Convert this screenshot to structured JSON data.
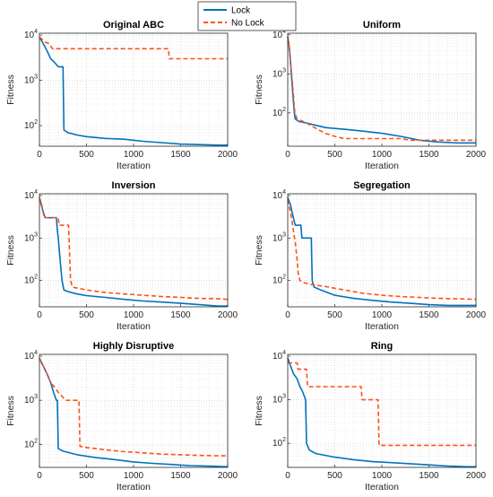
{
  "legend": {
    "placement": "top-center",
    "entries": [
      {
        "label": "Lock",
        "color": "#0072BD",
        "style": "solid"
      },
      {
        "label": "No Lock",
        "color": "#FF4F1A",
        "style": "dashed"
      }
    ]
  },
  "chart_data": [
    {
      "type": "line",
      "title": "Original ABC",
      "xlabel": "Iteration",
      "ylabel": "Fitness",
      "xlim": [
        0,
        2000
      ],
      "ylim": [
        35,
        11000
      ],
      "yscale": "log",
      "grid": true,
      "xticks": [
        0,
        500,
        1000,
        1500,
        2000
      ],
      "yticks": [
        {
          "value": 100,
          "label": "10^2"
        },
        {
          "value": 1000,
          "label": "10^3"
        },
        {
          "value": 10000,
          "label": "10^4"
        }
      ],
      "series": [
        {
          "name": "Lock",
          "points": [
            [
              0,
              9000
            ],
            [
              40,
              6500
            ],
            [
              80,
              4500
            ],
            [
              120,
              3000
            ],
            [
              160,
              2500
            ],
            [
              200,
              2000
            ],
            [
              250,
              2000
            ],
            [
              260,
              80
            ],
            [
              300,
              70
            ],
            [
              400,
              62
            ],
            [
              500,
              57
            ],
            [
              700,
              52
            ],
            [
              900,
              50
            ],
            [
              1100,
              45
            ],
            [
              1300,
              42
            ],
            [
              1500,
              39
            ],
            [
              1700,
              38
            ],
            [
              1900,
              37
            ],
            [
              2000,
              37
            ]
          ]
        },
        {
          "name": "No Lock",
          "points": [
            [
              0,
              9000
            ],
            [
              30,
              8000
            ],
            [
              60,
              7000
            ],
            [
              100,
              6500
            ],
            [
              140,
              5000
            ],
            [
              1370,
              5000
            ],
            [
              1380,
              3000
            ],
            [
              2000,
              3000
            ]
          ]
        }
      ]
    },
    {
      "type": "line",
      "title": "Uniform",
      "xlabel": "Iteration",
      "ylabel": "Fitness",
      "xlim": [
        0,
        2000
      ],
      "ylim": [
        14,
        11000
      ],
      "yscale": "log",
      "grid": true,
      "xticks": [
        0,
        500,
        1000,
        1500,
        2000
      ],
      "yticks": [
        {
          "value": 100,
          "label": "10^2"
        },
        {
          "value": 1000,
          "label": "10^3"
        },
        {
          "value": 10000,
          "label": "10^4"
        }
      ],
      "series": [
        {
          "name": "Lock",
          "points": [
            [
              0,
              9000
            ],
            [
              10,
              6000
            ],
            [
              20,
              4000
            ],
            [
              30,
              2000
            ],
            [
              40,
              900
            ],
            [
              50,
              400
            ],
            [
              60,
              200
            ],
            [
              70,
              100
            ],
            [
              80,
              70
            ],
            [
              120,
              60
            ],
            [
              200,
              55
            ],
            [
              300,
              48
            ],
            [
              400,
              42
            ],
            [
              600,
              38
            ],
            [
              800,
              34
            ],
            [
              1000,
              30
            ],
            [
              1200,
              25
            ],
            [
              1400,
              20
            ],
            [
              1600,
              18
            ],
            [
              1800,
              17
            ],
            [
              2000,
              17
            ]
          ]
        },
        {
          "name": "No Lock",
          "points": [
            [
              0,
              9000
            ],
            [
              15,
              5000
            ],
            [
              30,
              2000
            ],
            [
              45,
              800
            ],
            [
              60,
              300
            ],
            [
              75,
              100
            ],
            [
              100,
              70
            ],
            [
              200,
              55
            ],
            [
              300,
              40
            ],
            [
              400,
              30
            ],
            [
              500,
              25
            ],
            [
              600,
              22
            ],
            [
              1200,
              22
            ],
            [
              1300,
              20
            ],
            [
              2000,
              20
            ]
          ]
        }
      ]
    },
    {
      "type": "line",
      "title": "Inversion",
      "xlabel": "Iteration",
      "ylabel": "Fitness",
      "xlim": [
        0,
        2000
      ],
      "ylim": [
        24,
        11000
      ],
      "yscale": "log",
      "grid": true,
      "xticks": [
        0,
        500,
        1000,
        1500,
        2000
      ],
      "yticks": [
        {
          "value": 100,
          "label": "10^2"
        },
        {
          "value": 1000,
          "label": "10^3"
        },
        {
          "value": 10000,
          "label": "10^4"
        }
      ],
      "series": [
        {
          "name": "Lock",
          "points": [
            [
              0,
              9000
            ],
            [
              30,
              5000
            ],
            [
              60,
              3000
            ],
            [
              180,
              3000
            ],
            [
              190,
              1500
            ],
            [
              200,
              1000
            ],
            [
              220,
              300
            ],
            [
              240,
              100
            ],
            [
              260,
              60
            ],
            [
              300,
              55
            ],
            [
              400,
              48
            ],
            [
              500,
              44
            ],
            [
              700,
              40
            ],
            [
              900,
              36
            ],
            [
              1100,
              33
            ],
            [
              1300,
              31
            ],
            [
              1500,
              29
            ],
            [
              1700,
              27
            ],
            [
              1900,
              25
            ],
            [
              2000,
              25
            ]
          ]
        },
        {
          "name": "No Lock",
          "points": [
            [
              0,
              9000
            ],
            [
              25,
              6000
            ],
            [
              50,
              3000
            ],
            [
              200,
              3000
            ],
            [
              210,
              2000
            ],
            [
              310,
              2000
            ],
            [
              330,
              100
            ],
            [
              350,
              70
            ],
            [
              500,
              60
            ],
            [
              700,
              52
            ],
            [
              900,
              48
            ],
            [
              1100,
              45
            ],
            [
              1300,
              42
            ],
            [
              1500,
              40
            ],
            [
              1700,
              38
            ],
            [
              1900,
              37
            ],
            [
              2000,
              36
            ]
          ]
        }
      ]
    },
    {
      "type": "line",
      "title": "Segregation",
      "xlabel": "Iteration",
      "ylabel": "Fitness",
      "xlim": [
        0,
        2000
      ],
      "ylim": [
        24,
        11000
      ],
      "yscale": "log",
      "grid": true,
      "xticks": [
        0,
        500,
        1000,
        1500,
        2000
      ],
      "yticks": [
        {
          "value": 100,
          "label": "10^2"
        },
        {
          "value": 1000,
          "label": "10^3"
        },
        {
          "value": 10000,
          "label": "10^4"
        }
      ],
      "series": [
        {
          "name": "Lock",
          "points": [
            [
              0,
              9000
            ],
            [
              30,
              6000
            ],
            [
              60,
              3000
            ],
            [
              80,
              2000
            ],
            [
              140,
              2000
            ],
            [
              150,
              1000
            ],
            [
              250,
              1000
            ],
            [
              260,
              100
            ],
            [
              280,
              70
            ],
            [
              350,
              60
            ],
            [
              500,
              45
            ],
            [
              700,
              38
            ],
            [
              900,
              34
            ],
            [
              1100,
              31
            ],
            [
              1300,
              29
            ],
            [
              1500,
              27
            ],
            [
              1700,
              26
            ],
            [
              1900,
              26
            ],
            [
              2000,
              26
            ]
          ]
        },
        {
          "name": "No Lock",
          "points": [
            [
              0,
              8000
            ],
            [
              20,
              5000
            ],
            [
              40,
              3000
            ],
            [
              60,
              1500
            ],
            [
              80,
              800
            ],
            [
              100,
              300
            ],
            [
              110,
              150
            ],
            [
              130,
              100
            ],
            [
              160,
              90
            ],
            [
              250,
              80
            ],
            [
              400,
              72
            ],
            [
              600,
              60
            ],
            [
              800,
              50
            ],
            [
              1000,
              45
            ],
            [
              1200,
              42
            ],
            [
              1400,
              40
            ],
            [
              1600,
              38
            ],
            [
              1800,
              37
            ],
            [
              2000,
              36
            ]
          ]
        }
      ]
    },
    {
      "type": "line",
      "title": "Highly Disruptive",
      "xlabel": "Iteration",
      "ylabel": "Fitness",
      "xlim": [
        0,
        2000
      ],
      "ylim": [
        30,
        11000
      ],
      "yscale": "log",
      "grid": true,
      "xticks": [
        0,
        500,
        1000,
        1500,
        2000
      ],
      "yticks": [
        {
          "value": 100,
          "label": "10^2"
        },
        {
          "value": 1000,
          "label": "10^3"
        },
        {
          "value": 10000,
          "label": "10^4"
        }
      ],
      "series": [
        {
          "name": "Lock",
          "points": [
            [
              0,
              9000
            ],
            [
              40,
              6000
            ],
            [
              80,
              4000
            ],
            [
              120,
              2500
            ],
            [
              150,
              1500
            ],
            [
              180,
              1000
            ],
            [
              190,
              1000
            ],
            [
              200,
              80
            ],
            [
              250,
              70
            ],
            [
              400,
              58
            ],
            [
              600,
              50
            ],
            [
              800,
              45
            ],
            [
              1000,
              40
            ],
            [
              1200,
              37
            ],
            [
              1400,
              35
            ],
            [
              1600,
              33
            ],
            [
              1800,
              32
            ],
            [
              2000,
              31
            ]
          ]
        },
        {
          "name": "No Lock",
          "points": [
            [
              0,
              9000
            ],
            [
              40,
              6000
            ],
            [
              80,
              4000
            ],
            [
              120,
              2500
            ],
            [
              160,
              2000
            ],
            [
              200,
              1500
            ],
            [
              280,
              1000
            ],
            [
              420,
              1000
            ],
            [
              430,
              90
            ],
            [
              500,
              85
            ],
            [
              700,
              75
            ],
            [
              900,
              68
            ],
            [
              1100,
              64
            ],
            [
              1300,
              60
            ],
            [
              1500,
              58
            ],
            [
              1700,
              56
            ],
            [
              1900,
              55
            ],
            [
              2000,
              55
            ]
          ]
        }
      ]
    },
    {
      "type": "line",
      "title": "Ring",
      "xlabel": "Iteration",
      "ylabel": "Fitness",
      "xlim": [
        0,
        2000
      ],
      "ylim": [
        28,
        11000
      ],
      "yscale": "log",
      "grid": true,
      "xticks": [
        0,
        500,
        1000,
        1500,
        2000
      ],
      "yticks": [
        {
          "value": 100,
          "label": "10^2"
        },
        {
          "value": 1000,
          "label": "10^3"
        },
        {
          "value": 10000,
          "label": "10^4"
        }
      ],
      "series": [
        {
          "name": "Lock",
          "points": [
            [
              0,
              9000
            ],
            [
              30,
              6000
            ],
            [
              60,
              4000
            ],
            [
              100,
              3000
            ],
            [
              130,
              2000
            ],
            [
              160,
              1500
            ],
            [
              190,
              1000
            ],
            [
              200,
              100
            ],
            [
              230,
              70
            ],
            [
              300,
              58
            ],
            [
              500,
              48
            ],
            [
              700,
              42
            ],
            [
              900,
              38
            ],
            [
              1100,
              36
            ],
            [
              1300,
              34
            ],
            [
              1500,
              32
            ],
            [
              1700,
              30
            ],
            [
              1900,
              29
            ],
            [
              2000,
              29
            ]
          ]
        },
        {
          "name": "No Lock",
          "points": [
            [
              0,
              7000
            ],
            [
              100,
              7000
            ],
            [
              110,
              5000
            ],
            [
              200,
              5000
            ],
            [
              210,
              2000
            ],
            [
              780,
              2000
            ],
            [
              790,
              1000
            ],
            [
              960,
              1000
            ],
            [
              970,
              90
            ],
            [
              2000,
              90
            ]
          ]
        }
      ]
    }
  ]
}
